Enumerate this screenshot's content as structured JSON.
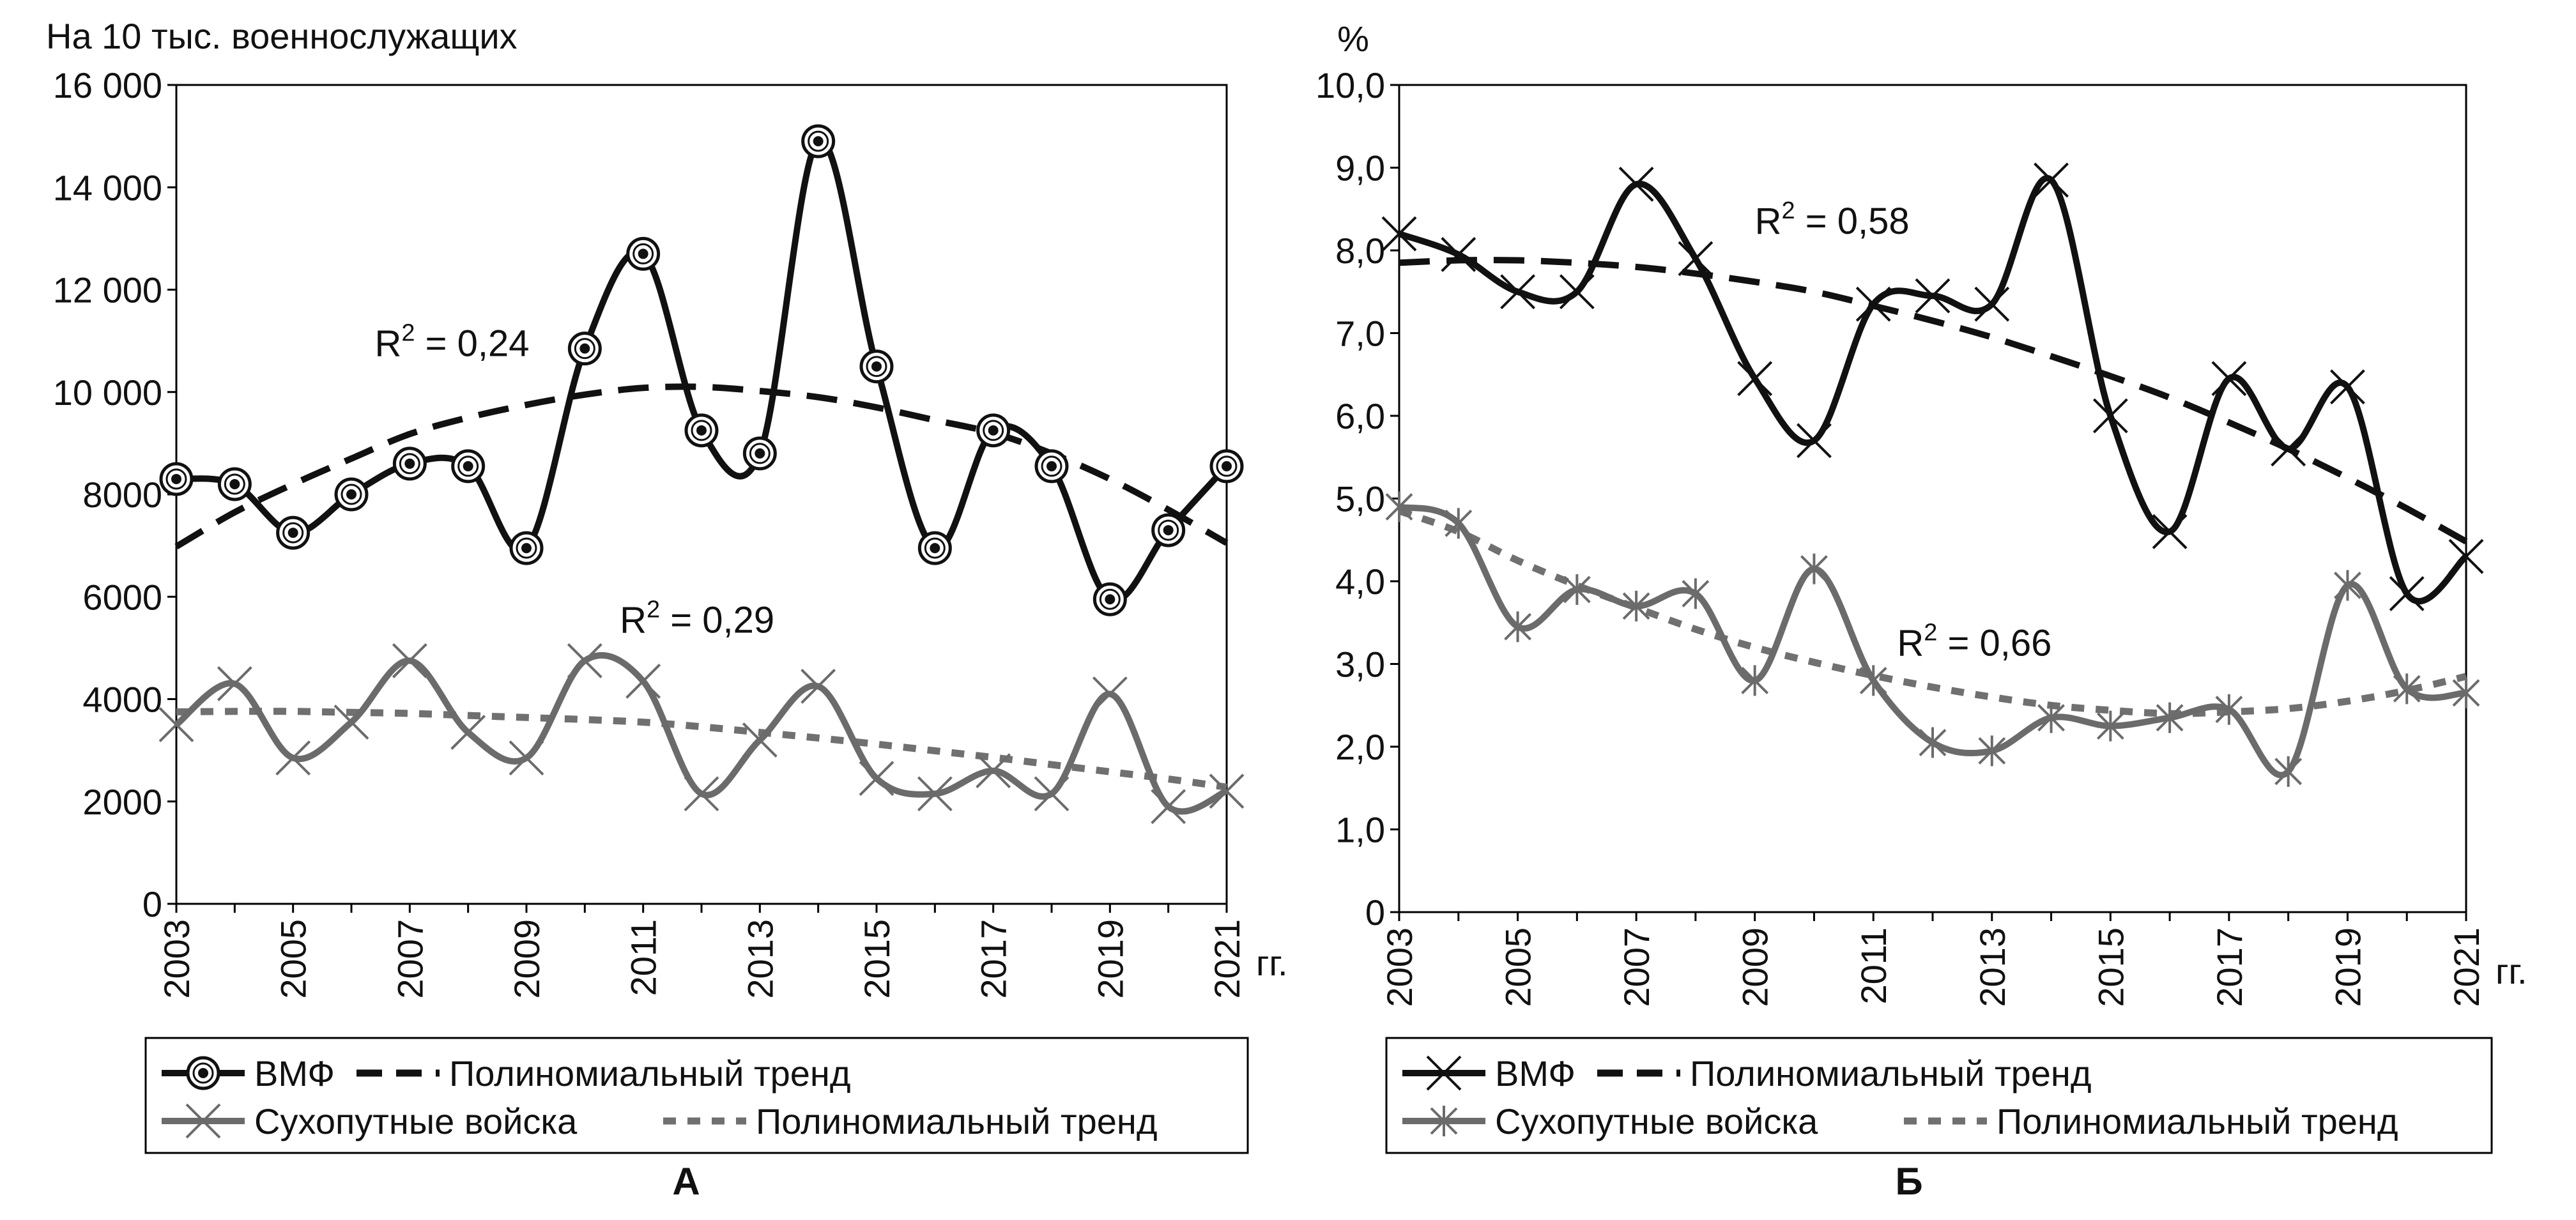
{
  "colors": {
    "black": "#111111",
    "gray": "#6b6b6b",
    "gray_dotted": "#707070",
    "frame": "#000000"
  },
  "chart_data": [
    {
      "panel_label": "А",
      "type": "line",
      "ylabel": "На 10 тыс.  военнослужащих",
      "xlabel": "гг.",
      "ylim": [
        0,
        16000
      ],
      "ytick_values": [
        0,
        2000,
        4000,
        6000,
        8000,
        10000,
        12000,
        14000,
        16000
      ],
      "ytick_labels": [
        "0",
        "2000",
        "4000",
        "6000",
        "8000",
        "10 000",
        "12 000",
        "14 000",
        "16 000"
      ],
      "xlim": [
        2003,
        2021
      ],
      "xtick_values": [
        2003,
        2005,
        2007,
        2009,
        2011,
        2013,
        2015,
        2017,
        2019,
        2021
      ],
      "xtick_labels": [
        "2003",
        "2005",
        "2007",
        "2009",
        "2011",
        "2013",
        "2015",
        "2017",
        "2019",
        "2021"
      ],
      "x": [
        2003,
        2004,
        2005,
        2006,
        2007,
        2008,
        2009,
        2010,
        2011,
        2012,
        2013,
        2014,
        2015,
        2016,
        2017,
        2018,
        2019,
        2020,
        2021
      ],
      "series": [
        {
          "name": "ВМФ",
          "marker": "circle-dot",
          "style": "solid",
          "color": "#111111",
          "values": [
            8300,
            8200,
            7250,
            8000,
            8600,
            8550,
            6950,
            10850,
            12700,
            9250,
            8800,
            14900,
            10500,
            6950,
            9250,
            8550,
            5950,
            7300,
            8550
          ]
        },
        {
          "name": "Полиномиальный тренд",
          "style": "dashed",
          "color": "#111111",
          "trend_of": "ВМФ",
          "values": [
            6980,
            7650,
            8200,
            8700,
            9180,
            9500,
            9750,
            9950,
            10080,
            10100,
            10020,
            9900,
            9700,
            9450,
            9200,
            8800,
            8300,
            7700,
            7050
          ]
        },
        {
          "name": "Сухопутные войска",
          "marker": "x",
          "style": "solid",
          "color": "#6b6b6b",
          "values": [
            3500,
            4300,
            2850,
            3550,
            4750,
            3350,
            2850,
            4750,
            4350,
            2150,
            3200,
            4250,
            2450,
            2150,
            2600,
            2150,
            4100,
            1900,
            2200
          ]
        },
        {
          "name": "Полиномиальный тренд",
          "style": "dotted",
          "color": "#707070",
          "trend_of": "Сухопутные войска",
          "values": [
            3750,
            3760,
            3760,
            3740,
            3720,
            3680,
            3640,
            3600,
            3550,
            3460,
            3350,
            3240,
            3120,
            2990,
            2860,
            2720,
            2580,
            2440,
            2280
          ]
        }
      ],
      "annotations": [
        {
          "base": "R",
          "sup": "2",
          "rest": " = 0,24",
          "x": 2006.4,
          "y": 10700
        },
        {
          "base": "R",
          "sup": "2",
          "rest": " = 0,29",
          "x": 2010.6,
          "y": 5300
        }
      ],
      "legend": [
        "ВМФ",
        "Полиномиальный тренд",
        "Сухопутные войска",
        "Полиномиальный тренд"
      ]
    },
    {
      "panel_label": "Б",
      "type": "line",
      "ylabel": "%",
      "xlabel": "гг.",
      "ylim": [
        0,
        10
      ],
      "ytick_values": [
        0,
        1,
        2,
        3,
        4,
        5,
        6,
        7,
        8,
        9,
        10
      ],
      "ytick_labels": [
        "0",
        "1,0",
        "2,0",
        "3,0",
        "4,0",
        "5,0",
        "6,0",
        "7,0",
        "8,0",
        "9,0",
        "10,0"
      ],
      "xlim": [
        2003,
        2021
      ],
      "xtick_values": [
        2003,
        2005,
        2007,
        2009,
        2011,
        2013,
        2015,
        2017,
        2019,
        2021
      ],
      "xtick_labels": [
        "2003",
        "2005",
        "2007",
        "2009",
        "2011",
        "2013",
        "2015",
        "2017",
        "2019",
        "2021"
      ],
      "x": [
        2003,
        2004,
        2005,
        2006,
        2007,
        2008,
        2009,
        2010,
        2011,
        2012,
        2013,
        2014,
        2015,
        2016,
        2017,
        2018,
        2019,
        2020,
        2021
      ],
      "series": [
        {
          "name": "ВМФ",
          "marker": "x",
          "style": "solid",
          "color": "#111111",
          "values": [
            8.2,
            7.95,
            7.5,
            7.5,
            8.8,
            7.9,
            6.45,
            5.7,
            7.35,
            7.45,
            7.35,
            8.85,
            6.0,
            4.6,
            6.45,
            5.6,
            6.35,
            3.85,
            4.3
          ]
        },
        {
          "name": "Полиномиальный тренд",
          "style": "dashed",
          "color": "#111111",
          "trend_of": "ВМФ",
          "values": [
            7.85,
            7.88,
            7.88,
            7.85,
            7.8,
            7.72,
            7.62,
            7.5,
            7.33,
            7.15,
            6.95,
            6.72,
            6.48,
            6.22,
            5.92,
            5.6,
            5.25,
            4.88,
            4.48
          ]
        },
        {
          "name": "Сухопутные войска",
          "marker": "asterisk",
          "style": "solid",
          "color": "#6b6b6b",
          "values": [
            4.9,
            4.7,
            3.45,
            3.9,
            3.7,
            3.85,
            2.8,
            4.15,
            2.8,
            2.05,
            1.95,
            2.35,
            2.25,
            2.35,
            2.45,
            1.7,
            3.95,
            2.7,
            2.65
          ]
        },
        {
          "name": "Полиномиальный тренд",
          "style": "dotted",
          "color": "#707070",
          "trend_of": "Сухопутные войска",
          "values": [
            4.85,
            4.6,
            4.25,
            3.95,
            3.68,
            3.42,
            3.2,
            3.02,
            2.86,
            2.72,
            2.6,
            2.5,
            2.44,
            2.4,
            2.42,
            2.46,
            2.55,
            2.68,
            2.85
          ]
        }
      ],
      "annotations": [
        {
          "base": "R",
          "sup": "2",
          "rest": " = 0,58",
          "x": 2009.0,
          "y": 8.2
        },
        {
          "base": "R",
          "sup": "2",
          "rest": " = 0,66",
          "x": 2011.4,
          "y": 3.1
        }
      ],
      "legend": [
        "ВМФ",
        "Полиномиальный тренд",
        "Сухопутные войска",
        "Полиномиальный тренд"
      ]
    }
  ]
}
